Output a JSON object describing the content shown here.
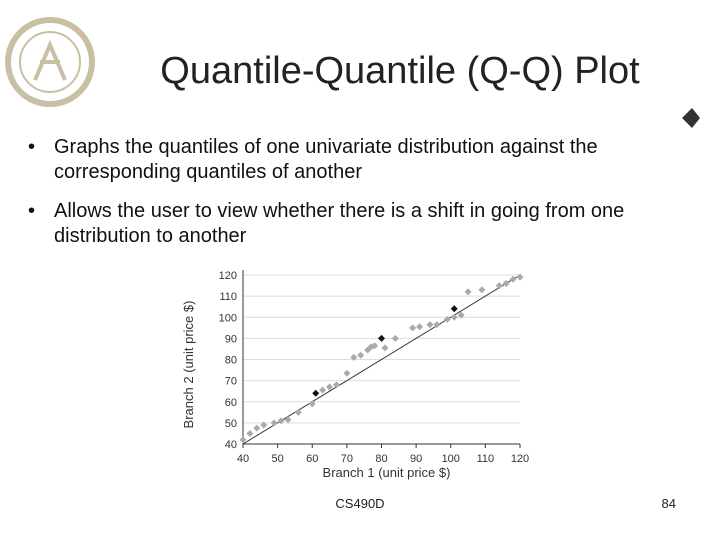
{
  "slide": {
    "title": "Quantile-Quantile (Q-Q) Plot",
    "bullets": [
      "Graphs the quantiles of one univariate distribution against the corresponding quantiles of another",
      "Allows the user to view whether there is a shift in going from one distribution to another"
    ],
    "footer": "CS490D",
    "page": "84"
  },
  "chart_data": {
    "type": "scatter",
    "xlabel": "Branch 1 (unit price $)",
    "ylabel": "Branch 2 (unit price $)",
    "xlim": [
      40,
      120
    ],
    "ylim": [
      40,
      120
    ],
    "xticks": [
      40,
      50,
      60,
      70,
      80,
      90,
      100,
      110,
      120
    ],
    "yticks": [
      40,
      50,
      60,
      70,
      80,
      90,
      100,
      110,
      120
    ],
    "grid": true,
    "diagonal": true,
    "series": [
      {
        "color": "#aaaaaa",
        "marker": "diamond",
        "x": [
          40,
          42,
          44,
          46,
          49,
          51,
          53,
          56,
          60,
          63,
          65,
          67,
          70,
          72,
          74,
          76,
          77,
          78,
          81,
          84,
          89,
          91,
          94,
          96,
          99,
          101,
          103,
          105,
          109,
          114,
          116,
          118,
          120
        ],
        "values": [
          42,
          45,
          47.5,
          49,
          50,
          51,
          51.5,
          55,
          59,
          65.5,
          67,
          68,
          73.5,
          81,
          82,
          84.5,
          86,
          86.5,
          85.5,
          90,
          95,
          95.5,
          96.5,
          96.5,
          99,
          100,
          101,
          112,
          113,
          115,
          116,
          118,
          119
        ]
      },
      {
        "color": "#111111",
        "marker": "diamond",
        "x": [
          61,
          80,
          101
        ],
        "values": [
          64,
          90,
          104
        ]
      }
    ]
  }
}
